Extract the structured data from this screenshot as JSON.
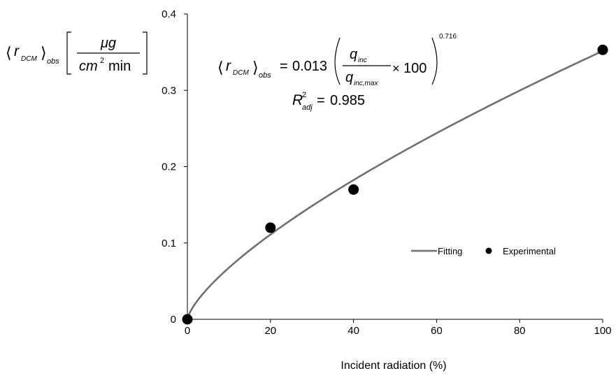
{
  "chart_data": {
    "type": "scatter",
    "xlabel": "Incident radiation (%)",
    "ylabel": {
      "bracket_open": "⟨",
      "bracket_close": "⟩",
      "symbol": "r",
      "symbol_subscript": "DCM",
      "subscript": "obs",
      "unit_numerator": "μg",
      "unit_denominator_base": "cm",
      "unit_denominator_exponent": "2",
      "unit_denominator_rest": "min"
    },
    "xlim": [
      0,
      100
    ],
    "ylim": [
      0,
      0.4
    ],
    "xticks": [
      0,
      20,
      40,
      60,
      80,
      100
    ],
    "yticks": [
      0,
      0.1,
      0.2,
      0.3,
      0.4
    ],
    "xtick_labels": [
      "0",
      "20",
      "40",
      "60",
      "80",
      "100"
    ],
    "ytick_labels": [
      "0",
      "0.1",
      "0.2",
      "0.3",
      "0.4"
    ],
    "grid": false,
    "legend_position": "lower-right",
    "series": [
      {
        "name": "Fitting",
        "kind": "line",
        "color": "#6f6f6f",
        "model": {
          "coefficient": 0.013,
          "exponent": 0.716
        }
      },
      {
        "name": "Experimental",
        "kind": "scatter",
        "color": "#000000",
        "x": [
          0,
          20,
          40,
          100
        ],
        "y": [
          0,
          0.12,
          0.17,
          0.353
        ]
      }
    ],
    "annotation": {
      "lhs_symbol": "r",
      "lhs_symbol_subscript": "DCM",
      "lhs_subscript": "obs",
      "equals": "=",
      "coefficient": "0.013",
      "numerator": "q",
      "numerator_subscript": "inc",
      "denominator": "q",
      "denominator_subscript": "inc,max",
      "times": "×",
      "factor": "100",
      "exponent": "0.716",
      "r2_symbol": "R",
      "r2_superscript": "2",
      "r2_subscript": "adj",
      "r2_equals": "=",
      "r2_value": "0.985"
    }
  }
}
